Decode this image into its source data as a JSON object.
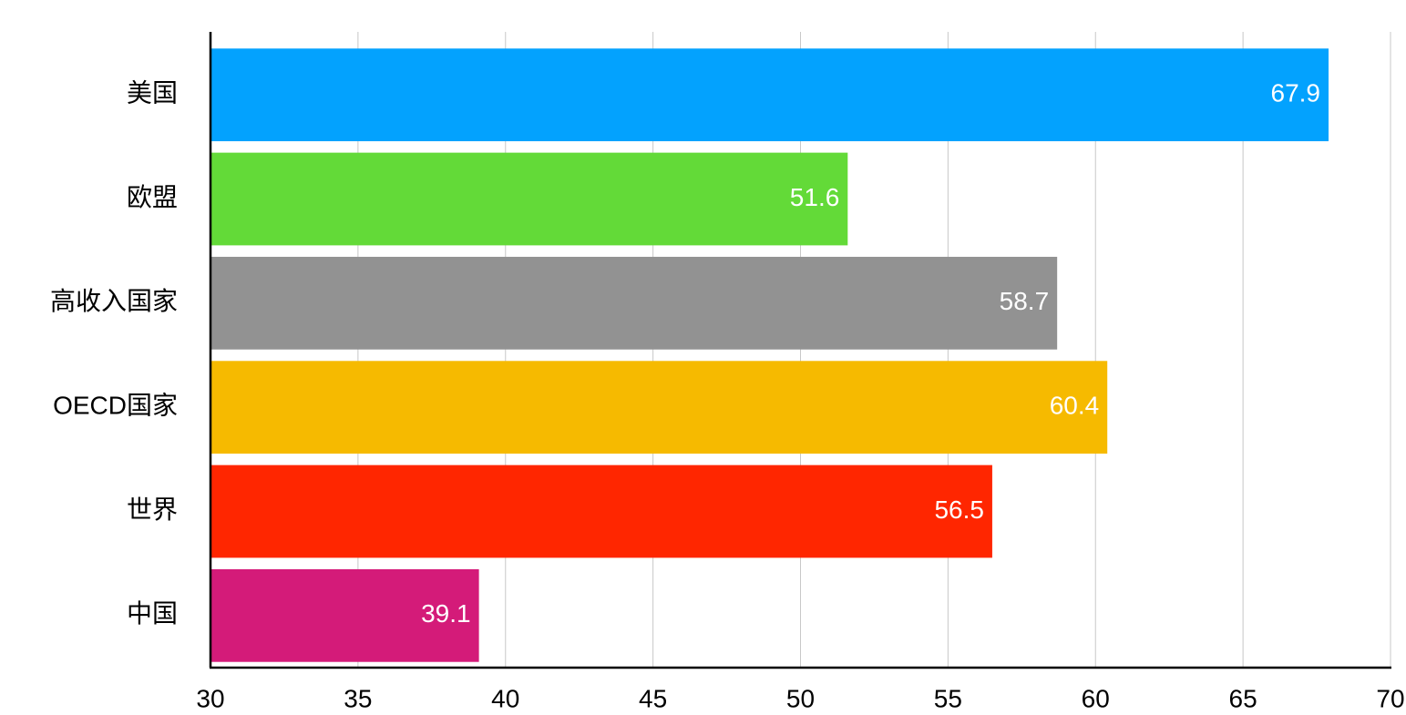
{
  "chart_data": {
    "type": "bar",
    "orientation": "horizontal",
    "categories": [
      "美国",
      "欧盟",
      "高收入国家",
      "OECD国家",
      "世界",
      "中国"
    ],
    "values": [
      67.9,
      51.6,
      58.7,
      60.4,
      56.5,
      39.1
    ],
    "colors": [
      "#03a2fe",
      "#63da38",
      "#929292",
      "#f6ba00",
      "#ff2600",
      "#d41b79"
    ],
    "xlim": [
      30,
      70
    ],
    "xticks": [
      30,
      35,
      40,
      45,
      50,
      55,
      60,
      65,
      70
    ],
    "grid": true
  }
}
